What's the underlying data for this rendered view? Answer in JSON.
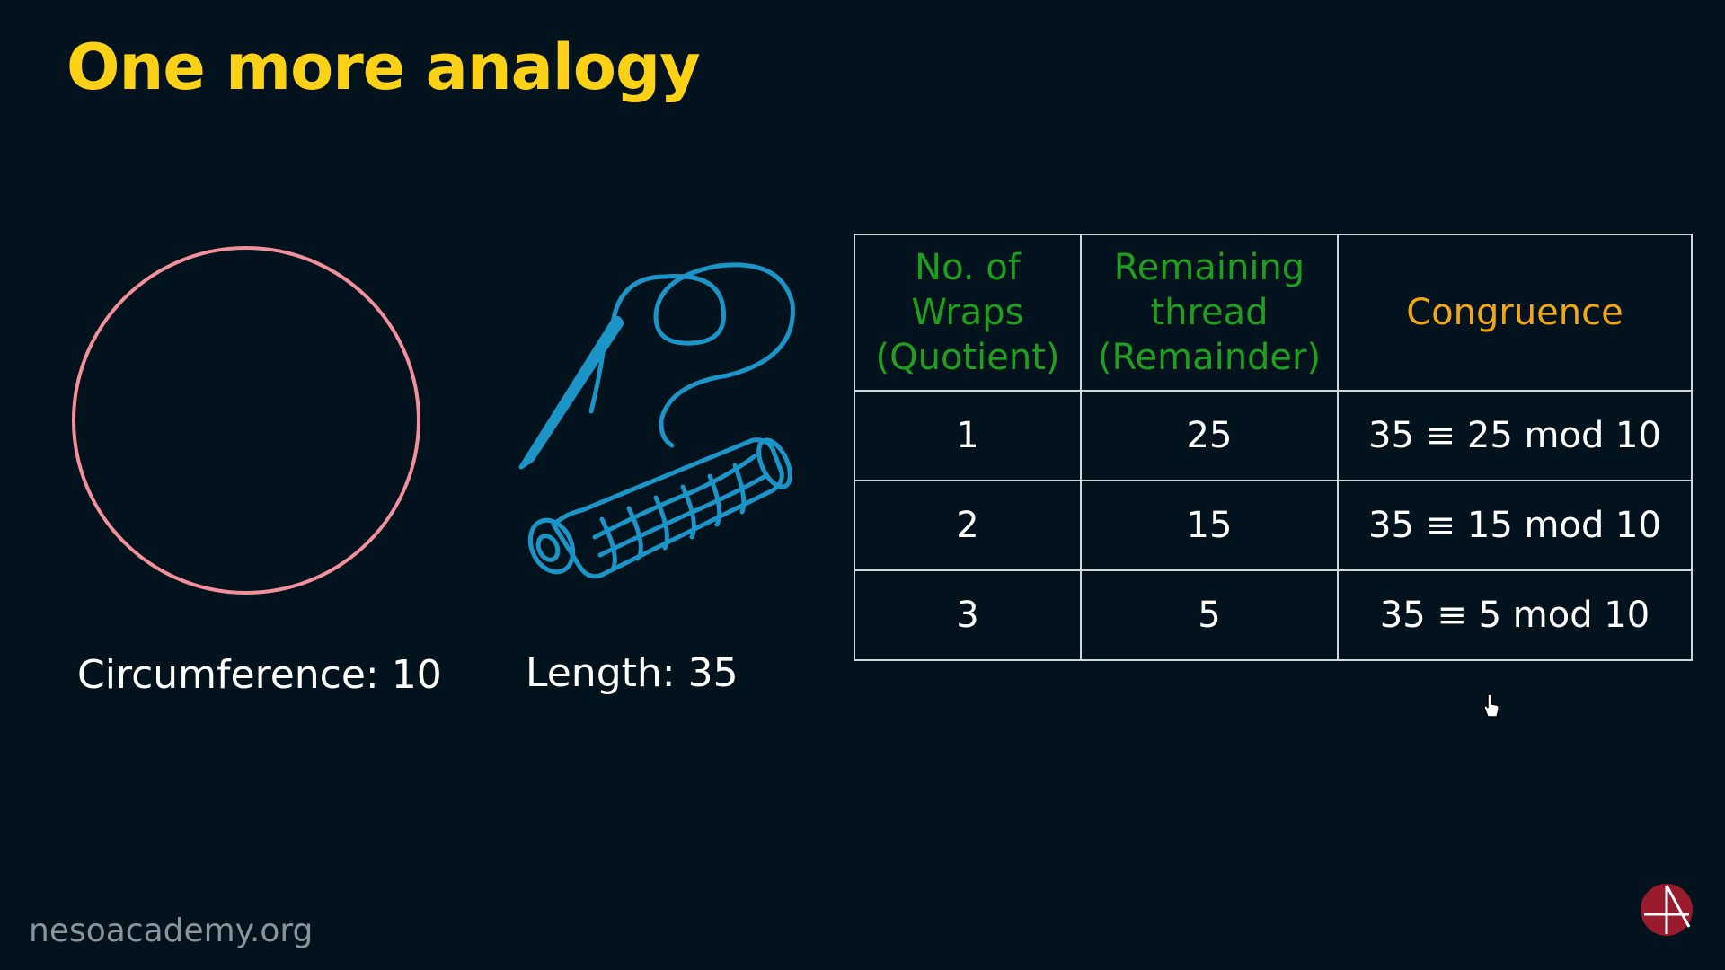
{
  "slide": {
    "title": "One more analogy",
    "circle_caption": "Circumference: 10",
    "thread_caption": "Length: 35",
    "footer": "nesoacademy.org"
  },
  "table": {
    "headers": [
      "No. of Wraps (Quotient)",
      "Remaining thread (Remainder)",
      "Congruence"
    ],
    "header_lines": [
      [
        "No. of",
        "Wraps",
        "(Quotient)"
      ],
      [
        "Remaining",
        "thread",
        "(Remainder)"
      ],
      [
        "Congruence"
      ]
    ],
    "rows": [
      [
        "1",
        "25",
        "35 ≡ 25 mod 10"
      ],
      [
        "2",
        "15",
        "35 ≡ 15 mod 10"
      ],
      [
        "3",
        "5",
        "35 ≡ 5 mod 10"
      ]
    ]
  },
  "icons": [
    "circle-shape",
    "needle-thread-spool-icon",
    "neso-logo-icon",
    "hand-cursor-icon"
  ],
  "colors": {
    "background": "#03131d",
    "title": "#fcd116",
    "circle": "#f48f9c",
    "illustration": "#1b95c8",
    "header_green": "#1f9e1f",
    "header_orange": "#f2a613",
    "logo": "#9b1b2e"
  }
}
